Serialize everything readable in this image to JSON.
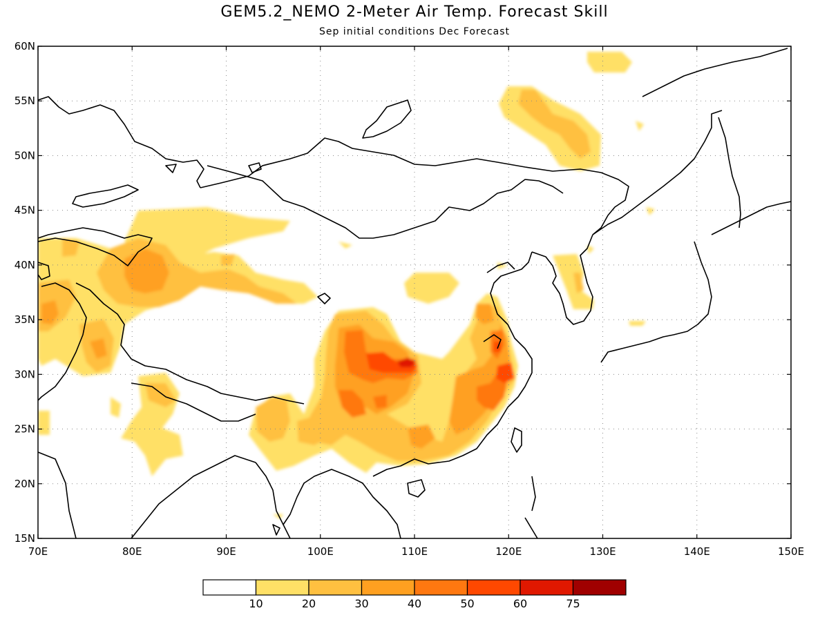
{
  "title": "GEM5.2_NEMO 2-Meter Air Temp. Forecast Skill",
  "subtitle": "Sep initial conditions  Dec Forecast",
  "map": {
    "lon_ticks": [
      "70E",
      "80E",
      "90E",
      "100E",
      "110E",
      "120E",
      "130E",
      "140E",
      "150E"
    ],
    "lat_ticks": [
      "60N",
      "55N",
      "50N",
      "45N",
      "40N",
      "35N",
      "30N",
      "25N",
      "20N",
      "15N"
    ],
    "lon_range": [
      70,
      150
    ],
    "lat_range": [
      15,
      60
    ],
    "grid": "dotted"
  },
  "colorbar": {
    "labels": [
      "10",
      "20",
      "30",
      "40",
      "50",
      "60",
      "75"
    ],
    "colors": [
      "#ffffff",
      "#ffe066",
      "#ffc040",
      "#ffa020",
      "#ff7810",
      "#ff4800",
      "#e01800",
      "#a00000"
    ]
  }
}
